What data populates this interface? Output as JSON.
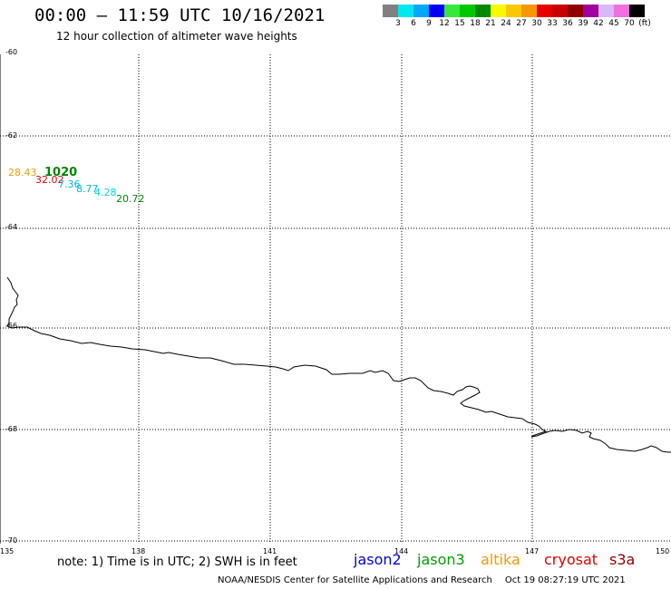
{
  "title": "00:00 – 11:59 UTC 10/16/2021",
  "subtitle": "12 hour collection of altimeter wave heights",
  "colorbar": {
    "swatches": [
      "#808080",
      "#00e8f0",
      "#00a8f8",
      "#0000f8",
      "#38e838",
      "#00c800",
      "#008800",
      "#f8f800",
      "#f8c800",
      "#f89800",
      "#e80000",
      "#c80000",
      "#900000",
      "#a000a0",
      "#d8b8f8",
      "#f070e0",
      "#000000"
    ],
    "labels": [
      "3",
      "6",
      "9",
      "12",
      "15",
      "18",
      "21",
      "24",
      "27",
      "30",
      "33",
      "36",
      "39",
      "42",
      "45",
      "70",
      "(ft)"
    ]
  },
  "axes": {
    "lat_labels": [
      "-60",
      "-62",
      "-64",
      "-66",
      "-68",
      "-70"
    ],
    "lon_labels": [
      "135",
      "138",
      "141",
      "144",
      "147",
      "150"
    ]
  },
  "wave_heights": [
    {
      "text": "28.43",
      "color": "#f0a000"
    },
    {
      "text": "1020",
      "color": "#008800"
    },
    {
      "text": "32.02",
      "color": "#e00000"
    },
    {
      "text": "7.36",
      "color": "#00b8e0"
    },
    {
      "text": "8.77",
      "color": "#00b8e0"
    },
    {
      "text": "4.28",
      "color": "#00d8e8"
    },
    {
      "text": "20.72",
      "color": "#008800"
    }
  ],
  "note": "note:  1) Time is in UTC; 2) SWH is in feet",
  "satellites": [
    {
      "name": "jason2",
      "color": "#0000e0"
    },
    {
      "name": "jason3",
      "color": "#00a000"
    },
    {
      "name": "altika",
      "color": "#f89800"
    },
    {
      "name": "cryosat",
      "color": "#e00000"
    },
    {
      "name": "s3a",
      "color": "#900000"
    }
  ],
  "footer": {
    "center": "NOAA/NESDIS Center for Satellite Applications and Research",
    "timestamp": "Oct 19 08:27:19 UTC 2021"
  }
}
